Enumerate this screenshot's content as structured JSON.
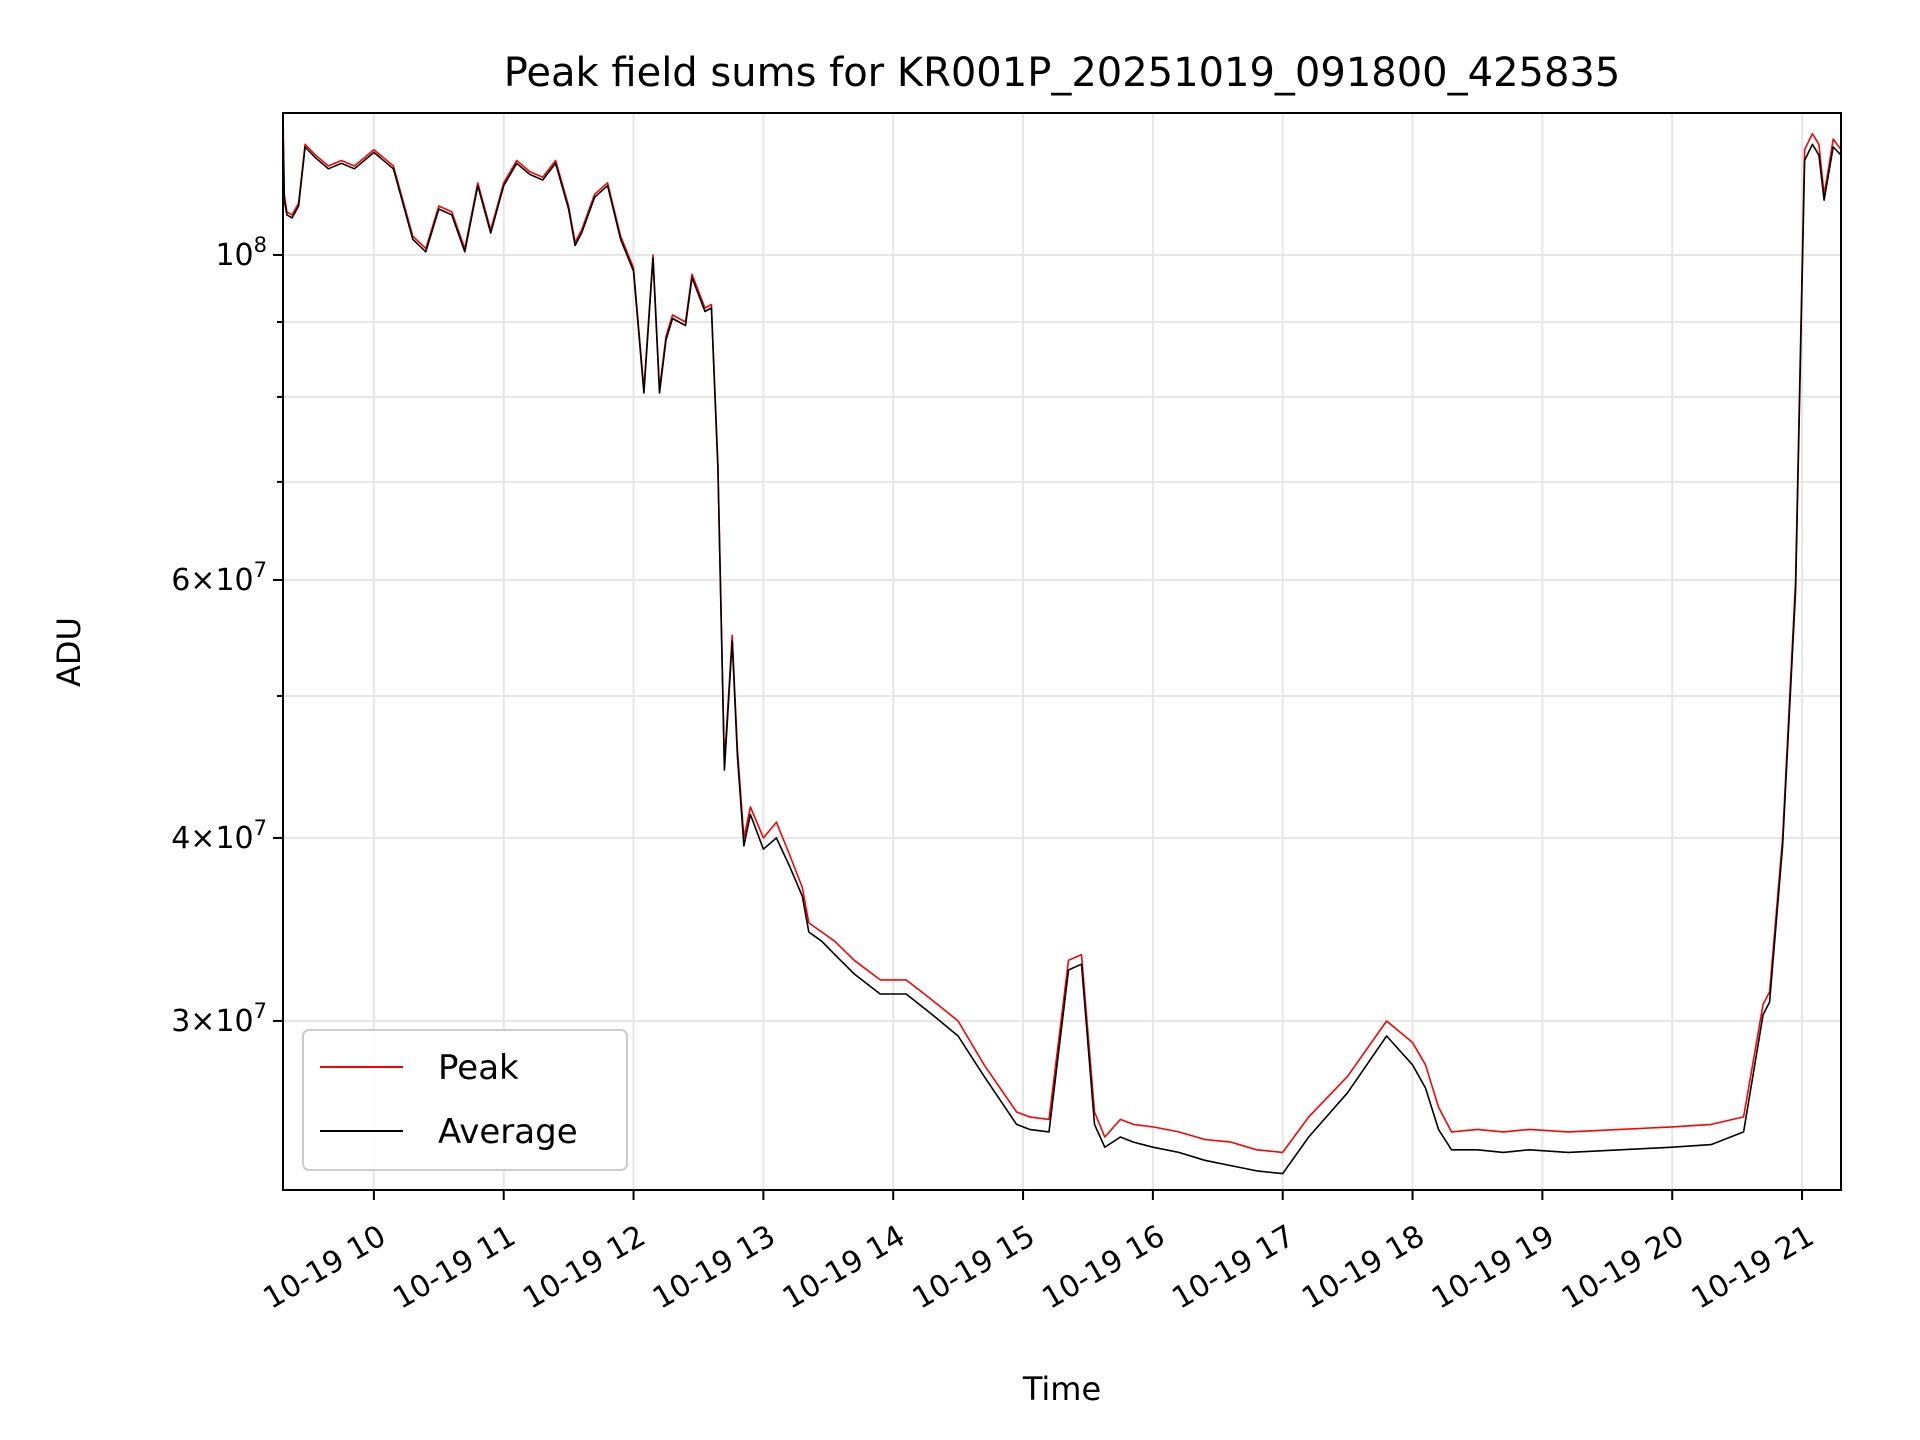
{
  "chart_data": {
    "type": "line",
    "title": "Peak field sums for KR001P_20251019_091800_425835",
    "xlabel": "Time",
    "ylabel": "ADU",
    "x_unit": "hours of 2025-10-19",
    "xlim": [
      9.3,
      21.3
    ],
    "ylim": [
      23000000,
      125000000
    ],
    "y_scale": "log",
    "grid": true,
    "legend_position": "lower-left",
    "x_ticks": [
      {
        "value": 10,
        "label": "10-19 10"
      },
      {
        "value": 11,
        "label": "10-19 11"
      },
      {
        "value": 12,
        "label": "10-19 12"
      },
      {
        "value": 13,
        "label": "10-19 13"
      },
      {
        "value": 14,
        "label": "10-19 14"
      },
      {
        "value": 15,
        "label": "10-19 15"
      },
      {
        "value": 16,
        "label": "10-19 16"
      },
      {
        "value": 17,
        "label": "10-19 17"
      },
      {
        "value": 18,
        "label": "10-19 18"
      },
      {
        "value": 19,
        "label": "10-19 19"
      },
      {
        "value": 20,
        "label": "10-19 20"
      },
      {
        "value": 21,
        "label": "10-19 21"
      }
    ],
    "y_major_ticks": [
      {
        "value": 100000000,
        "base": "10",
        "exp": "8",
        "mantissa": ""
      },
      {
        "value": 60000000,
        "base": "10",
        "exp": "7",
        "mantissa": "6"
      },
      {
        "value": 40000000,
        "base": "10",
        "exp": "7",
        "mantissa": "4"
      },
      {
        "value": 30000000,
        "base": "10",
        "exp": "7",
        "mantissa": "3"
      }
    ],
    "y_minor_ticks": [
      90000000,
      80000000,
      70000000,
      50000000
    ],
    "series": [
      {
        "name": "Peak",
        "color": "#ff0000",
        "x": [
          9.3,
          9.31,
          9.33,
          9.37,
          9.42,
          9.47,
          9.55,
          9.65,
          9.75,
          9.85,
          10.0,
          10.15,
          10.3,
          10.4,
          10.5,
          10.6,
          10.7,
          10.8,
          10.9,
          11.0,
          11.1,
          11.2,
          11.3,
          11.4,
          11.5,
          11.55,
          11.6,
          11.7,
          11.8,
          11.9,
          12.0,
          12.08,
          12.15,
          12.2,
          12.25,
          12.3,
          12.4,
          12.45,
          12.55,
          12.6,
          12.65,
          12.7,
          12.76,
          12.8,
          12.85,
          12.9,
          13.0,
          13.1,
          13.2,
          13.3,
          13.35,
          13.45,
          13.55,
          13.7,
          13.9,
          14.1,
          14.3,
          14.5,
          14.7,
          14.95,
          15.05,
          15.2,
          15.35,
          15.45,
          15.55,
          15.63,
          15.75,
          15.85,
          16.0,
          16.2,
          16.4,
          16.6,
          16.8,
          17.0,
          17.2,
          17.5,
          17.8,
          18.0,
          18.1,
          18.2,
          18.3,
          18.5,
          18.7,
          18.9,
          19.2,
          19.6,
          20.0,
          20.3,
          20.55,
          20.7,
          20.75,
          20.85,
          20.95,
          21.02,
          21.08,
          21.13,
          21.17,
          21.2,
          21.24,
          21.3
        ],
        "y": [
          125000000,
          110000000,
          107000000,
          106500000,
          108500000,
          119000000,
          117000000,
          115000000,
          116000000,
          115000000,
          118000000,
          115000000,
          103000000,
          101000000,
          108000000,
          107000000,
          101000000,
          112000000,
          104000000,
          112000000,
          116000000,
          114000000,
          113000000,
          116000000,
          108000000,
          102000000,
          104000000,
          110000000,
          112000000,
          103000000,
          98000000,
          81000000,
          100000000,
          81000000,
          88000000,
          91000000,
          90000000,
          97000000,
          92000000,
          92500000,
          72000000,
          45000000,
          55000000,
          46000000,
          40000000,
          42000000,
          40000000,
          41000000,
          39000000,
          37000000,
          35000000,
          34500000,
          34000000,
          33000000,
          32000000,
          32000000,
          31000000,
          30000000,
          28000000,
          26000000,
          25800000,
          25700000,
          33000000,
          33300000,
          26000000,
          25000000,
          25700000,
          25500000,
          25400000,
          25200000,
          24900000,
          24800000,
          24500000,
          24400000,
          25800000,
          27500000,
          30000000,
          29000000,
          28000000,
          26200000,
          25200000,
          25300000,
          25200000,
          25300000,
          25200000,
          25300000,
          25400000,
          25500000,
          25800000,
          30800000,
          31400000,
          40000000,
          60000000,
          118000000,
          121000000,
          119000000,
          110000000,
          114000000,
          120000000,
          118000000
        ]
      },
      {
        "name": "Average",
        "color": "#000000",
        "x": [
          9.3,
          9.31,
          9.33,
          9.37,
          9.42,
          9.47,
          9.55,
          9.65,
          9.75,
          9.85,
          10.0,
          10.15,
          10.3,
          10.4,
          10.5,
          10.6,
          10.7,
          10.8,
          10.9,
          11.0,
          11.1,
          11.2,
          11.3,
          11.4,
          11.5,
          11.55,
          11.6,
          11.7,
          11.8,
          11.9,
          12.0,
          12.08,
          12.15,
          12.2,
          12.25,
          12.3,
          12.4,
          12.45,
          12.55,
          12.6,
          12.65,
          12.7,
          12.76,
          12.8,
          12.85,
          12.9,
          13.0,
          13.1,
          13.2,
          13.3,
          13.35,
          13.45,
          13.55,
          13.7,
          13.9,
          14.1,
          14.3,
          14.5,
          14.7,
          14.95,
          15.05,
          15.2,
          15.35,
          15.45,
          15.55,
          15.63,
          15.75,
          15.85,
          16.0,
          16.2,
          16.4,
          16.6,
          16.8,
          17.0,
          17.2,
          17.5,
          17.8,
          18.0,
          18.1,
          18.2,
          18.3,
          18.5,
          18.7,
          18.9,
          19.2,
          19.6,
          20.0,
          20.3,
          20.55,
          20.7,
          20.75,
          20.85,
          20.95,
          21.02,
          21.08,
          21.13,
          21.17,
          21.2,
          21.24,
          21.3
        ],
        "y": [
          122000000,
          109000000,
          106500000,
          106000000,
          108000000,
          118500000,
          116500000,
          114500000,
          115500000,
          114500000,
          117500000,
          114500000,
          102500000,
          100500000,
          107500000,
          106500000,
          100500000,
          111500000,
          103500000,
          111500000,
          115500000,
          113500000,
          112500000,
          115500000,
          107500000,
          101500000,
          103500000,
          109500000,
          111500000,
          102500000,
          97500000,
          80500000,
          99500000,
          80500000,
          87500000,
          90500000,
          89500000,
          96500000,
          91500000,
          92000000,
          71500000,
          44500000,
          54500000,
          45500000,
          39500000,
          41500000,
          39300000,
          40000000,
          38300000,
          36500000,
          34500000,
          34000000,
          33300000,
          32300000,
          31300000,
          31300000,
          30300000,
          29300000,
          27500000,
          25500000,
          25300000,
          25200000,
          32500000,
          32800000,
          25500000,
          24600000,
          25000000,
          24800000,
          24600000,
          24400000,
          24100000,
          23900000,
          23700000,
          23600000,
          25000000,
          26800000,
          29300000,
          28000000,
          27000000,
          25300000,
          24500000,
          24500000,
          24400000,
          24500000,
          24400000,
          24500000,
          24600000,
          24700000,
          25200000,
          30300000,
          30900000,
          39500000,
          59000000,
          116000000,
          119000000,
          117000000,
          109000000,
          113000000,
          118500000,
          117000000
        ]
      }
    ]
  }
}
